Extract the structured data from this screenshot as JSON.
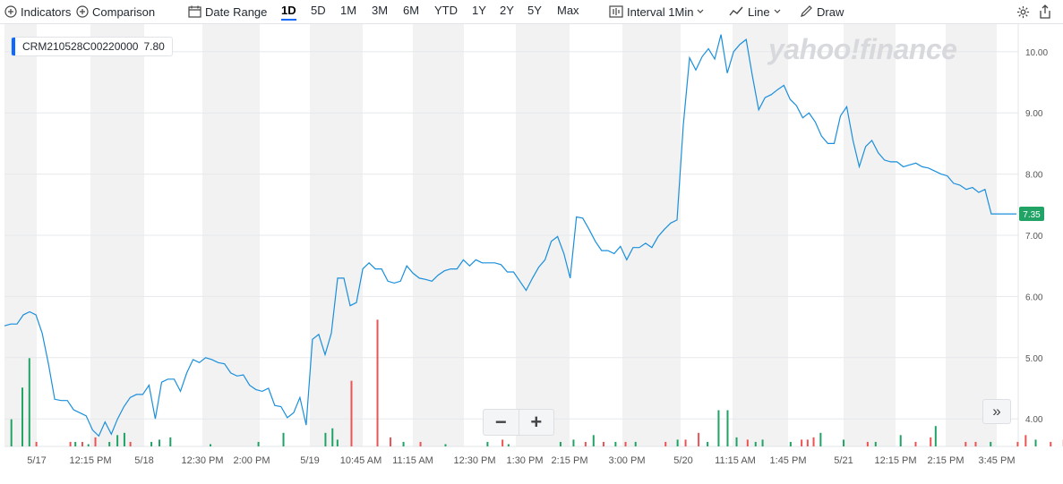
{
  "toolbar": {
    "indicators": "Indicators",
    "comparison": "Comparison",
    "date_range": "Date Range",
    "ranges": [
      "1D",
      "5D",
      "1M",
      "3M",
      "6M",
      "YTD",
      "1Y",
      "2Y",
      "5Y",
      "Max"
    ],
    "active_range": "1D",
    "interval_label": "Interval",
    "interval_value": "1Min",
    "chart_type": "Line",
    "draw": "Draw",
    "icons": [
      "plus-circle-icon",
      "calendar-icon",
      "candle-icon",
      "line-chart-icon",
      "pencil-icon",
      "gear-icon",
      "share-icon",
      "chevron-down-icon"
    ]
  },
  "legend": {
    "symbol": "CRM210528C00220000",
    "value": "7.80"
  },
  "watermark": "yahoo!finance",
  "last_price_label": "7.35",
  "colors": {
    "line": "#1a8fdb",
    "up": "#21a366",
    "down": "#eb5454",
    "last_badge": "#21a366",
    "shade": "#f2f2f2",
    "accent": "#0f69ff"
  },
  "zoom": {
    "minus": "−",
    "plus": "+"
  },
  "expand": "»",
  "chart_data": {
    "type": "line",
    "title": "",
    "xlabel": "",
    "ylabel": "",
    "ylim": [
      3.55,
      10.45
    ],
    "y_ticks": [
      "10.00",
      "9.00",
      "8.00",
      "7.00",
      "6.00",
      "5.00",
      "4.00"
    ],
    "x_tick_labels": [
      "5/17",
      "12:15 PM",
      "5/18",
      "12:30 PM",
      "2:00 PM",
      "5/19",
      "10:45 AM",
      "11:15 AM",
      "12:30 PM",
      "1:30 PM",
      "2:15 PM",
      "3:00 PM",
      "5/20",
      "11:15 AM",
      "1:45 PM",
      "5/21",
      "12:15 PM",
      "2:15 PM",
      "3:45 PM"
    ],
    "grid": true,
    "series": [
      {
        "name": "",
        "values": [
          5.52,
          5.55,
          5.55,
          5.7,
          5.75,
          5.7,
          5.4,
          4.9,
          4.32,
          4.3,
          4.3,
          4.15,
          4.1,
          4.05,
          3.82,
          3.72,
          3.95,
          3.75,
          4.0,
          4.2,
          4.35,
          4.4,
          4.4,
          4.55,
          4.0,
          4.6,
          4.65,
          4.65,
          4.45,
          4.75,
          4.97,
          4.92,
          5.0,
          4.97,
          4.92,
          4.9,
          4.75,
          4.7,
          4.72,
          4.55,
          4.48,
          4.45,
          4.5,
          4.22,
          4.2,
          4.02,
          4.1,
          4.35,
          3.9,
          5.3,
          5.38,
          5.05,
          5.4,
          6.3,
          6.3,
          5.85,
          5.9,
          6.45,
          6.55,
          6.45,
          6.45,
          6.25,
          6.22,
          6.25,
          6.5,
          6.38,
          6.3,
          6.28,
          6.25,
          6.35,
          6.42,
          6.45,
          6.45,
          6.6,
          6.5,
          6.6,
          6.55,
          6.55,
          6.55,
          6.52,
          6.4,
          6.4,
          6.25,
          6.1,
          6.3,
          6.48,
          6.6,
          6.9,
          6.98,
          6.7,
          6.3,
          7.3,
          7.28,
          7.1,
          6.9,
          6.75,
          6.75,
          6.7,
          6.82,
          6.6,
          6.8,
          6.8,
          6.87,
          6.8,
          6.98,
          7.1,
          7.2,
          7.25,
          8.8,
          9.9,
          9.7,
          9.92,
          10.05,
          9.88,
          10.28,
          9.65,
          10.0,
          10.12,
          10.2,
          9.6,
          9.05,
          9.25,
          9.3,
          9.38,
          9.45,
          9.22,
          9.12,
          8.92,
          9.0,
          8.85,
          8.62,
          8.5,
          8.5,
          8.95,
          9.1,
          8.55,
          8.12,
          8.45,
          8.55,
          8.35,
          8.23,
          8.2,
          8.2,
          8.12,
          8.15,
          8.18,
          8.12,
          8.1,
          8.05,
          8.0,
          7.97,
          7.85,
          7.82,
          7.75,
          7.78,
          7.7,
          7.75,
          7.35,
          7.35,
          7.35,
          7.35,
          7.35
        ]
      }
    ],
    "volume": [
      {
        "x": 0.006,
        "v": 0.12,
        "up": true
      },
      {
        "x": 0.017,
        "v": 0.26,
        "up": true
      },
      {
        "x": 0.024,
        "v": 0.39,
        "up": true
      },
      {
        "x": 0.031,
        "v": 0.02,
        "up": false
      },
      {
        "x": 0.065,
        "v": 0.02,
        "up": false
      },
      {
        "x": 0.07,
        "v": 0.02,
        "up": true
      },
      {
        "x": 0.077,
        "v": 0.02,
        "up": false
      },
      {
        "x": 0.083,
        "v": 0.01,
        "up": true
      },
      {
        "x": 0.09,
        "v": 0.04,
        "up": false
      },
      {
        "x": 0.104,
        "v": 0.02,
        "up": true
      },
      {
        "x": 0.112,
        "v": 0.05,
        "up": true
      },
      {
        "x": 0.119,
        "v": 0.06,
        "up": true
      },
      {
        "x": 0.125,
        "v": 0.02,
        "up": false
      },
      {
        "x": 0.146,
        "v": 0.02,
        "up": true
      },
      {
        "x": 0.154,
        "v": 0.03,
        "up": true
      },
      {
        "x": 0.165,
        "v": 0.04,
        "up": true
      },
      {
        "x": 0.205,
        "v": 0.01,
        "up": true
      },
      {
        "x": 0.253,
        "v": 0.02,
        "up": true
      },
      {
        "x": 0.278,
        "v": 0.06,
        "up": true
      },
      {
        "x": 0.32,
        "v": 0.06,
        "up": true
      },
      {
        "x": 0.327,
        "v": 0.08,
        "up": true
      },
      {
        "x": 0.332,
        "v": 0.03,
        "up": true
      },
      {
        "x": 0.346,
        "v": 0.29,
        "up": false
      },
      {
        "x": 0.372,
        "v": 0.56,
        "up": false
      },
      {
        "x": 0.385,
        "v": 0.04,
        "up": false
      },
      {
        "x": 0.398,
        "v": 0.02,
        "up": true
      },
      {
        "x": 0.415,
        "v": 0.02,
        "up": false
      },
      {
        "x": 0.44,
        "v": 0.01,
        "up": true
      },
      {
        "x": 0.482,
        "v": 0.02,
        "up": true
      },
      {
        "x": 0.497,
        "v": 0.03,
        "up": false
      },
      {
        "x": 0.503,
        "v": 0.01,
        "up": true
      },
      {
        "x": 0.555,
        "v": 0.02,
        "up": true
      },
      {
        "x": 0.568,
        "v": 0.03,
        "up": true
      },
      {
        "x": 0.58,
        "v": 0.02,
        "up": false
      },
      {
        "x": 0.588,
        "v": 0.05,
        "up": true
      },
      {
        "x": 0.598,
        "v": 0.02,
        "up": false
      },
      {
        "x": 0.61,
        "v": 0.02,
        "up": true
      },
      {
        "x": 0.62,
        "v": 0.02,
        "up": false
      },
      {
        "x": 0.63,
        "v": 0.02,
        "up": true
      },
      {
        "x": 0.66,
        "v": 0.02,
        "up": false
      },
      {
        "x": 0.672,
        "v": 0.03,
        "up": true
      },
      {
        "x": 0.68,
        "v": 0.03,
        "up": false
      },
      {
        "x": 0.693,
        "v": 0.06,
        "up": false
      },
      {
        "x": 0.702,
        "v": 0.02,
        "up": true
      },
      {
        "x": 0.713,
        "v": 0.16,
        "up": true
      },
      {
        "x": 0.722,
        "v": 0.16,
        "up": true
      },
      {
        "x": 0.731,
        "v": 0.04,
        "up": true
      },
      {
        "x": 0.742,
        "v": 0.03,
        "up": false
      },
      {
        "x": 0.75,
        "v": 0.02,
        "up": true
      },
      {
        "x": 0.757,
        "v": 0.03,
        "up": true
      },
      {
        "x": 0.785,
        "v": 0.02,
        "up": true
      },
      {
        "x": 0.796,
        "v": 0.03,
        "up": false
      },
      {
        "x": 0.802,
        "v": 0.03,
        "up": false
      },
      {
        "x": 0.808,
        "v": 0.04,
        "up": false
      },
      {
        "x": 0.815,
        "v": 0.06,
        "up": true
      },
      {
        "x": 0.838,
        "v": 0.03,
        "up": true
      },
      {
        "x": 0.862,
        "v": 0.02,
        "up": false
      },
      {
        "x": 0.87,
        "v": 0.02,
        "up": true
      },
      {
        "x": 0.895,
        "v": 0.05,
        "up": true
      },
      {
        "x": 0.91,
        "v": 0.02,
        "up": false
      },
      {
        "x": 0.925,
        "v": 0.04,
        "up": false
      },
      {
        "x": 0.93,
        "v": 0.09,
        "up": true
      },
      {
        "x": 0.96,
        "v": 0.02,
        "up": false
      },
      {
        "x": 0.97,
        "v": 0.02,
        "up": false
      },
      {
        "x": 0.985,
        "v": 0.02,
        "up": true
      },
      {
        "x": 1.012,
        "v": 0.02,
        "up": false
      },
      {
        "x": 1.02,
        "v": 0.05,
        "up": false
      },
      {
        "x": 1.03,
        "v": 0.03,
        "up": true
      },
      {
        "x": 1.045,
        "v": 0.02,
        "up": false
      },
      {
        "x": 1.058,
        "v": 0.03,
        "up": false
      },
      {
        "x": 1.072,
        "v": 0.24,
        "up": true
      }
    ]
  }
}
